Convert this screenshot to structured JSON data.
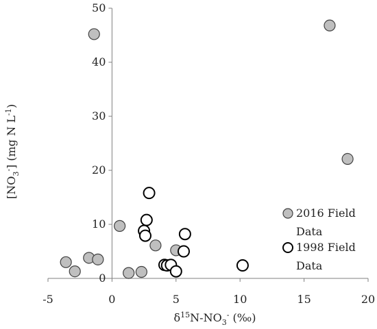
{
  "chart_data": {
    "type": "scatter",
    "title": "",
    "xlabel": {
      "prefix": "δ",
      "sup": "15",
      "middle": "N-NO",
      "sub": "3",
      "sup2": "-",
      "suffix": " (‰)"
    },
    "ylabel": {
      "prefix": "[NO",
      "sub": "3",
      "sup": "-",
      "middle": "] (mg N L",
      "sup2": "-1",
      "suffix": ")"
    },
    "xlim": [
      -5,
      20
    ],
    "ylim": [
      0,
      50
    ],
    "xticks": [
      -5,
      0,
      5,
      10,
      15,
      20
    ],
    "yticks": [
      0,
      10,
      20,
      30,
      40,
      50
    ],
    "xtick_labels": [
      "-5",
      "0",
      "5",
      "10",
      "15",
      "20"
    ],
    "ytick_labels": [
      "0",
      "10",
      "20",
      "30",
      "40",
      "50"
    ],
    "grid": false,
    "legend_position": "bottom-right",
    "series": [
      {
        "name": "2016 Field Data",
        "legend_lines": [
          "2016 Field",
          "Data"
        ],
        "marker": "filled-circle",
        "fill": "#bfbfbf",
        "stroke": "#404040",
        "points": [
          {
            "x": -1.4,
            "y": 45.2
          },
          {
            "x": 17.0,
            "y": 46.8
          },
          {
            "x": 18.4,
            "y": 22.1
          },
          {
            "x": 0.6,
            "y": 9.7
          },
          {
            "x": 3.4,
            "y": 6.1
          },
          {
            "x": 5.0,
            "y": 5.2
          },
          {
            "x": -3.6,
            "y": 3.0
          },
          {
            "x": -1.8,
            "y": 3.8
          },
          {
            "x": -1.1,
            "y": 3.5
          },
          {
            "x": -2.9,
            "y": 1.3
          },
          {
            "x": 1.3,
            "y": 1.0
          },
          {
            "x": 2.3,
            "y": 1.2
          }
        ]
      },
      {
        "name": "1998 Field Data",
        "legend_lines": [
          "1998 Field",
          "Data"
        ],
        "marker": "open-circle",
        "fill": "#ffffff",
        "stroke": "#000000",
        "points": [
          {
            "x": 2.9,
            "y": 15.8
          },
          {
            "x": 2.7,
            "y": 10.8
          },
          {
            "x": 2.5,
            "y": 8.8
          },
          {
            "x": 2.6,
            "y": 7.9
          },
          {
            "x": 5.7,
            "y": 8.2
          },
          {
            "x": 5.6,
            "y": 5.0
          },
          {
            "x": 4.1,
            "y": 2.5
          },
          {
            "x": 4.3,
            "y": 2.4
          },
          {
            "x": 4.6,
            "y": 2.5
          },
          {
            "x": 5.0,
            "y": 1.3
          },
          {
            "x": 10.2,
            "y": 2.4
          }
        ]
      }
    ]
  }
}
